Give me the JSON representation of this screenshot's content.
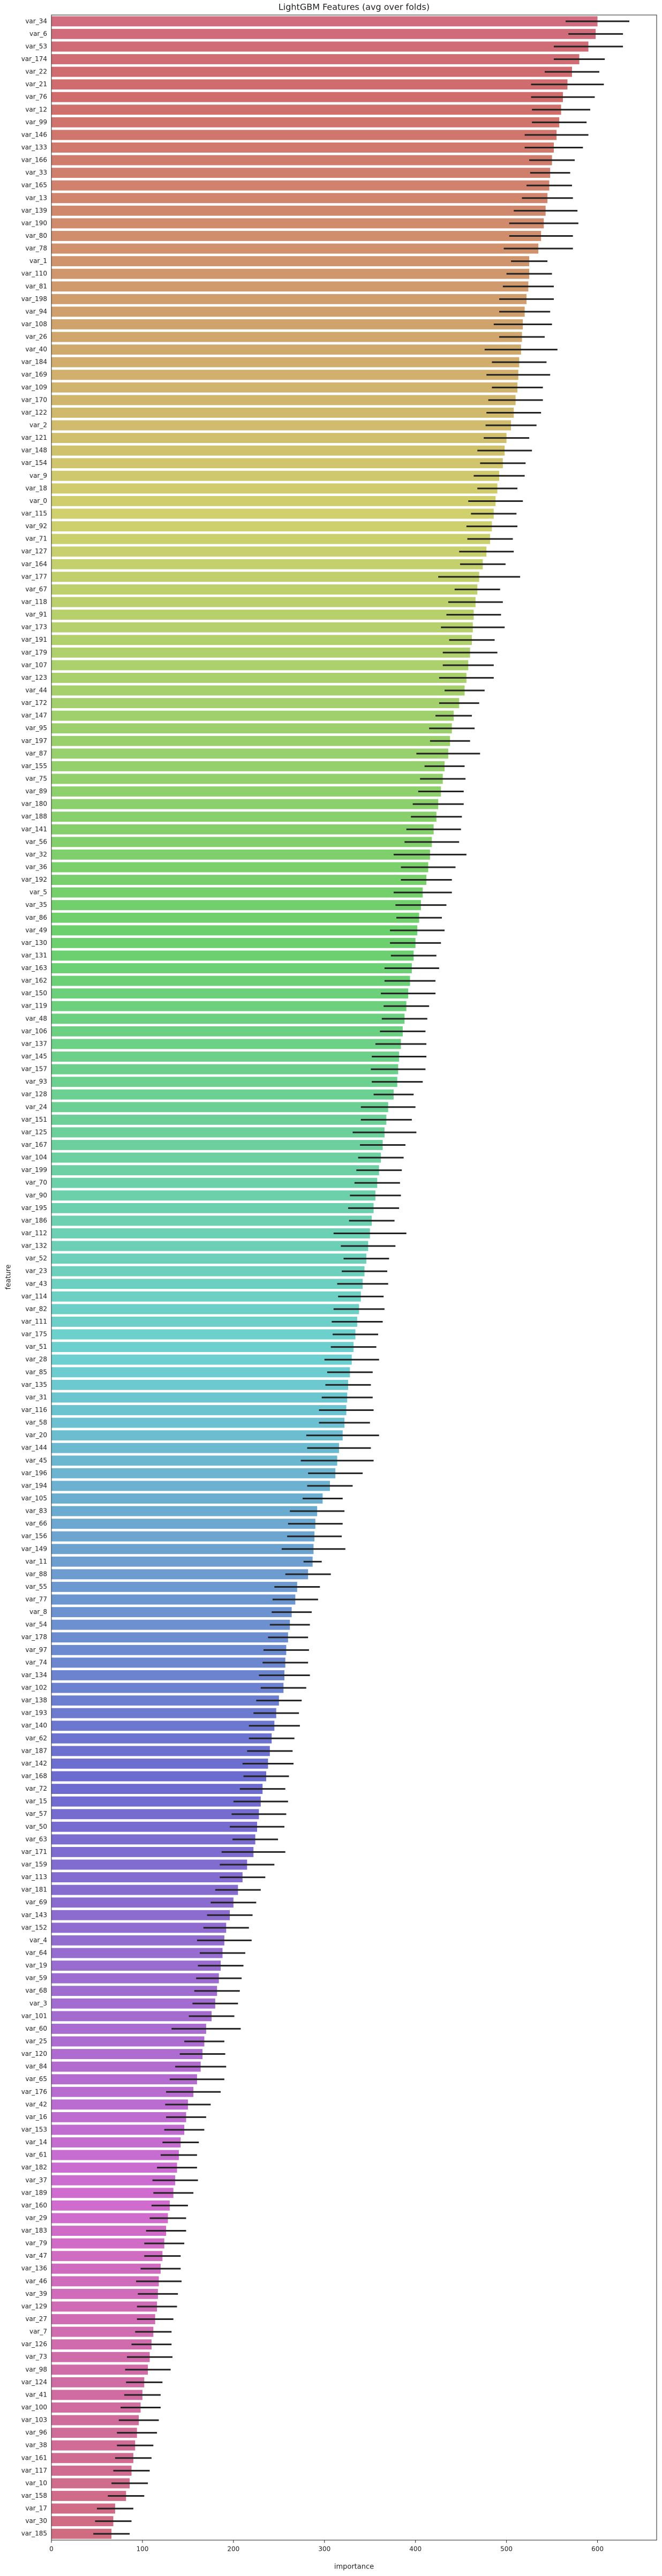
{
  "chart_data": {
    "type": "barh",
    "title": "LightGBM Features (avg over folds)",
    "xlabel": "importance",
    "ylabel": "feature",
    "palette": "husl",
    "error_color": "#222222",
    "xlim": [
      0,
      665
    ],
    "xticks": [
      0,
      100,
      200,
      300,
      400,
      500,
      600
    ],
    "categories": [
      "var_34",
      "var_6",
      "var_53",
      "var_174",
      "var_22",
      "var_21",
      "var_76",
      "var_12",
      "var_99",
      "var_146",
      "var_133",
      "var_166",
      "var_33",
      "var_165",
      "var_13",
      "var_139",
      "var_190",
      "var_80",
      "var_78",
      "var_1",
      "var_110",
      "var_81",
      "var_198",
      "var_94",
      "var_108",
      "var_26",
      "var_40",
      "var_184",
      "var_169",
      "var_109",
      "var_170",
      "var_122",
      "var_2",
      "var_121",
      "var_148",
      "var_154",
      "var_9",
      "var_18",
      "var_0",
      "var_115",
      "var_92",
      "var_71",
      "var_127",
      "var_164",
      "var_177",
      "var_67",
      "var_118",
      "var_91",
      "var_173",
      "var_191",
      "var_179",
      "var_107",
      "var_123",
      "var_44",
      "var_172",
      "var_147",
      "var_95",
      "var_197",
      "var_87",
      "var_155",
      "var_75",
      "var_89",
      "var_180",
      "var_188",
      "var_141",
      "var_56",
      "var_32",
      "var_36",
      "var_192",
      "var_5",
      "var_35",
      "var_86",
      "var_49",
      "var_130",
      "var_131",
      "var_163",
      "var_162",
      "var_150",
      "var_119",
      "var_48",
      "var_106",
      "var_137",
      "var_145",
      "var_157",
      "var_93",
      "var_128",
      "var_24",
      "var_151",
      "var_125",
      "var_167",
      "var_104",
      "var_199",
      "var_70",
      "var_90",
      "var_195",
      "var_186",
      "var_112",
      "var_132",
      "var_52",
      "var_23",
      "var_43",
      "var_114",
      "var_82",
      "var_111",
      "var_175",
      "var_51",
      "var_28",
      "var_85",
      "var_135",
      "var_31",
      "var_116",
      "var_58",
      "var_20",
      "var_144",
      "var_45",
      "var_196",
      "var_194",
      "var_105",
      "var_83",
      "var_66",
      "var_156",
      "var_149",
      "var_11",
      "var_88",
      "var_55",
      "var_77",
      "var_8",
      "var_54",
      "var_178",
      "var_97",
      "var_74",
      "var_134",
      "var_102",
      "var_138",
      "var_193",
      "var_140",
      "var_62",
      "var_187",
      "var_142",
      "var_168",
      "var_72",
      "var_15",
      "var_57",
      "var_50",
      "var_63",
      "var_171",
      "var_159",
      "var_113",
      "var_181",
      "var_69",
      "var_143",
      "var_152",
      "var_4",
      "var_64",
      "var_19",
      "var_59",
      "var_68",
      "var_3",
      "var_101",
      "var_60",
      "var_25",
      "var_120",
      "var_84",
      "var_65",
      "var_176",
      "var_42",
      "var_16",
      "var_153",
      "var_14",
      "var_61",
      "var_182",
      "var_37",
      "var_189",
      "var_160",
      "var_29",
      "var_183",
      "var_79",
      "var_47",
      "var_136",
      "var_46",
      "var_39",
      "var_129",
      "var_27",
      "var_7",
      "var_126",
      "var_73",
      "var_98",
      "var_124",
      "var_41",
      "var_100",
      "var_103",
      "var_96",
      "var_38",
      "var_161",
      "var_117",
      "var_10",
      "var_158",
      "var_17",
      "var_30",
      "var_185"
    ],
    "values": [
      600,
      598,
      590,
      580,
      572,
      567,
      562,
      560,
      558,
      555,
      552,
      550,
      548,
      547,
      545,
      543,
      541,
      538,
      535,
      525,
      525,
      524,
      522,
      520,
      518,
      517,
      516,
      514,
      513,
      512,
      510,
      508,
      505,
      500,
      498,
      496,
      492,
      490,
      488,
      486,
      484,
      482,
      478,
      474,
      470,
      468,
      466,
      464,
      463,
      462,
      460,
      458,
      456,
      454,
      448,
      442,
      440,
      438,
      436,
      432,
      430,
      428,
      425,
      423,
      420,
      418,
      416,
      414,
      412,
      408,
      406,
      404,
      402,
      400,
      398,
      396,
      394,
      392,
      390,
      388,
      386,
      384,
      382,
      381,
      380,
      376,
      370,
      368,
      366,
      364,
      362,
      360,
      358,
      356,
      354,
      352,
      350,
      348,
      346,
      344,
      342,
      340,
      338,
      336,
      334,
      332,
      330,
      328,
      326,
      325,
      324,
      322,
      320,
      316,
      314,
      312,
      306,
      298,
      292,
      290,
      289,
      288,
      287,
      282,
      270,
      268,
      264,
      262,
      260,
      258,
      257,
      256,
      255,
      250,
      247,
      245,
      242,
      240,
      238,
      236,
      232,
      230,
      228,
      226,
      224,
      222,
      215,
      210,
      205,
      200,
      196,
      192,
      190,
      188,
      186,
      184,
      182,
      180,
      176,
      170,
      168,
      166,
      164,
      160,
      156,
      150,
      148,
      146,
      142,
      140,
      138,
      136,
      134,
      130,
      128,
      126,
      124,
      122,
      120,
      118,
      117,
      116,
      114,
      112,
      110,
      108,
      106,
      102,
      100,
      98,
      96,
      94,
      92,
      90,
      88,
      86,
      82,
      70,
      68,
      66
    ],
    "errors": [
      35,
      30,
      38,
      28,
      30,
      40,
      35,
      32,
      30,
      35,
      32,
      25,
      22,
      25,
      28,
      35,
      38,
      35,
      38,
      20,
      25,
      28,
      30,
      28,
      32,
      25,
      40,
      30,
      35,
      28,
      30,
      30,
      28,
      25,
      30,
      25,
      28,
      22,
      30,
      25,
      28,
      25,
      30,
      25,
      45,
      25,
      30,
      30,
      35,
      25,
      30,
      28,
      30,
      22,
      22,
      20,
      25,
      22,
      35,
      22,
      25,
      25,
      28,
      28,
      30,
      30,
      40,
      30,
      28,
      32,
      28,
      25,
      30,
      28,
      25,
      30,
      28,
      30,
      25,
      25,
      25,
      28,
      30,
      30,
      28,
      22,
      30,
      28,
      35,
      25,
      25,
      25,
      25,
      28,
      28,
      25,
      40,
      30,
      25,
      25,
      28,
      25,
      28,
      28,
      25,
      25,
      30,
      25,
      25,
      28,
      30,
      28,
      40,
      35,
      40,
      30,
      25,
      22,
      30,
      30,
      30,
      35,
      10,
      25,
      25,
      25,
      22,
      22,
      22,
      25,
      25,
      28,
      25,
      25,
      25,
      28,
      25,
      25,
      28,
      25,
      25,
      30,
      30,
      30,
      25,
      35,
      30,
      25,
      25,
      25,
      25,
      25,
      30,
      25,
      25,
      25,
      25,
      25,
      25,
      38,
      22,
      25,
      28,
      30,
      30,
      25,
      22,
      22,
      20,
      20,
      22,
      25,
      22,
      20,
      20,
      22,
      22,
      20,
      22,
      25,
      22,
      22,
      20,
      20,
      22,
      25,
      25,
      20,
      20,
      22,
      22,
      22,
      20,
      20,
      20,
      20,
      20,
      20,
      20,
      20
    ]
  }
}
